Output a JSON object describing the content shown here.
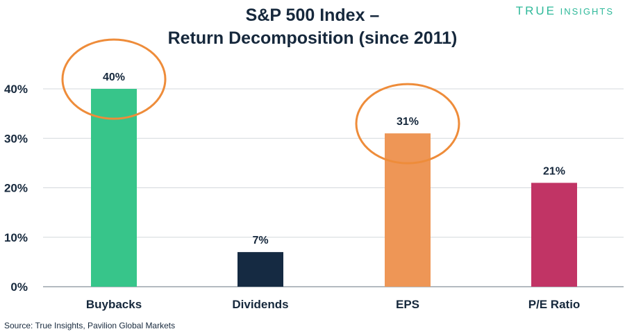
{
  "brand": {
    "name_primary": "TRUE",
    "name_secondary": "INSIGHTS",
    "color": "#2fb99a"
  },
  "source": "Source: True Insights, Pavilion Global Markets",
  "chart_data": {
    "type": "bar",
    "title_line1": "S&P 500 Index –",
    "title_line2": "Return Decomposition (since 2011)",
    "categories": [
      "Buybacks",
      "Dividends",
      "EPS",
      "P/E Ratio"
    ],
    "values": [
      40,
      7,
      31,
      21
    ],
    "data_labels": [
      "40%",
      "7%",
      "31%",
      "21%"
    ],
    "colors": [
      "#37c58a",
      "#152a42",
      "#ee9656",
      "#c13465"
    ],
    "highlighted": [
      "Buybacks",
      "EPS"
    ],
    "highlight_color": "#ee8c3a",
    "y_ticks": [
      0,
      10,
      20,
      30,
      40
    ],
    "y_tick_labels": [
      "0%",
      "10%",
      "20%",
      "30%",
      "40%"
    ],
    "ylim": [
      0,
      40
    ],
    "grid": true,
    "xlabel": "",
    "ylabel": ""
  }
}
